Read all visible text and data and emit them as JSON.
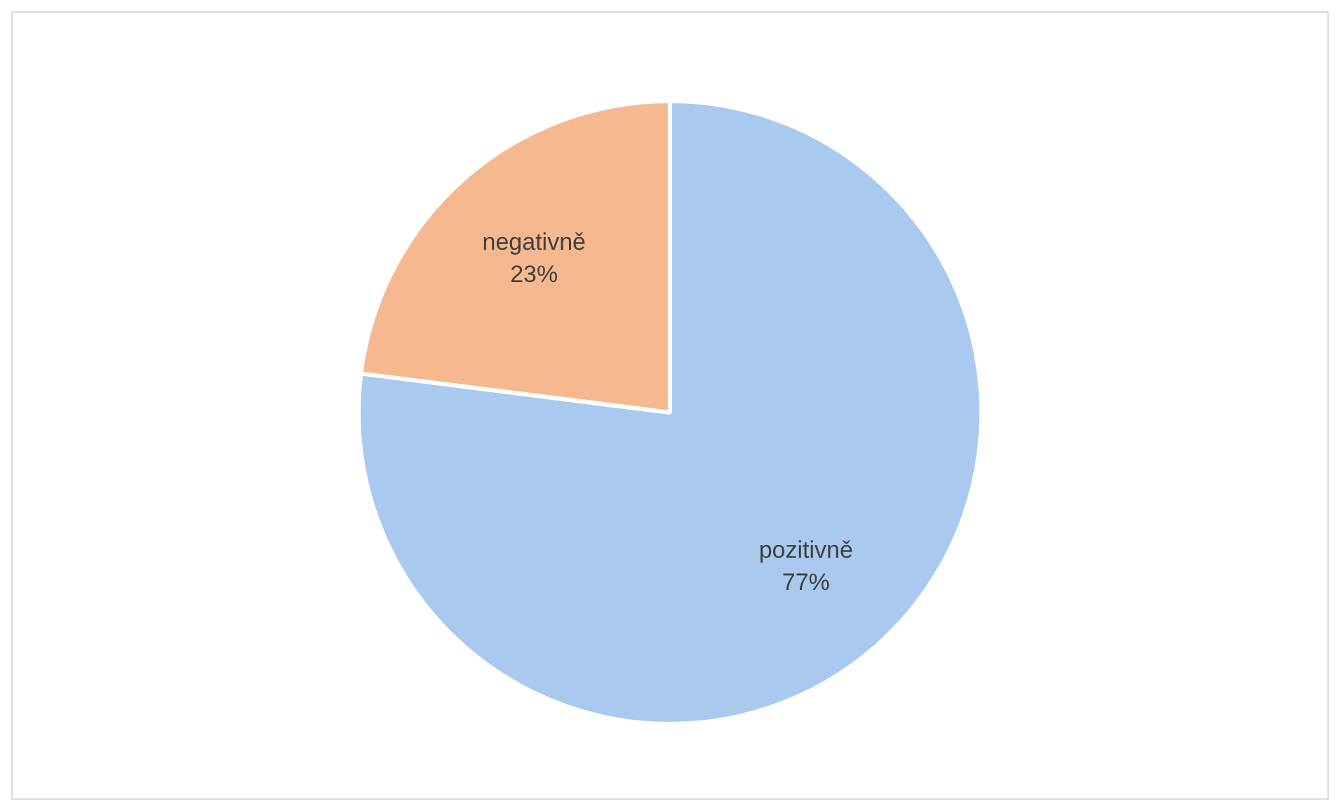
{
  "chart_data": {
    "type": "pie",
    "categories": [
      "pozitivně",
      "negativně"
    ],
    "values": [
      77,
      23
    ],
    "value_labels": [
      "77%",
      "23%"
    ],
    "colors": [
      "#a9c9ef",
      "#f6b88e"
    ],
    "legend": false
  }
}
